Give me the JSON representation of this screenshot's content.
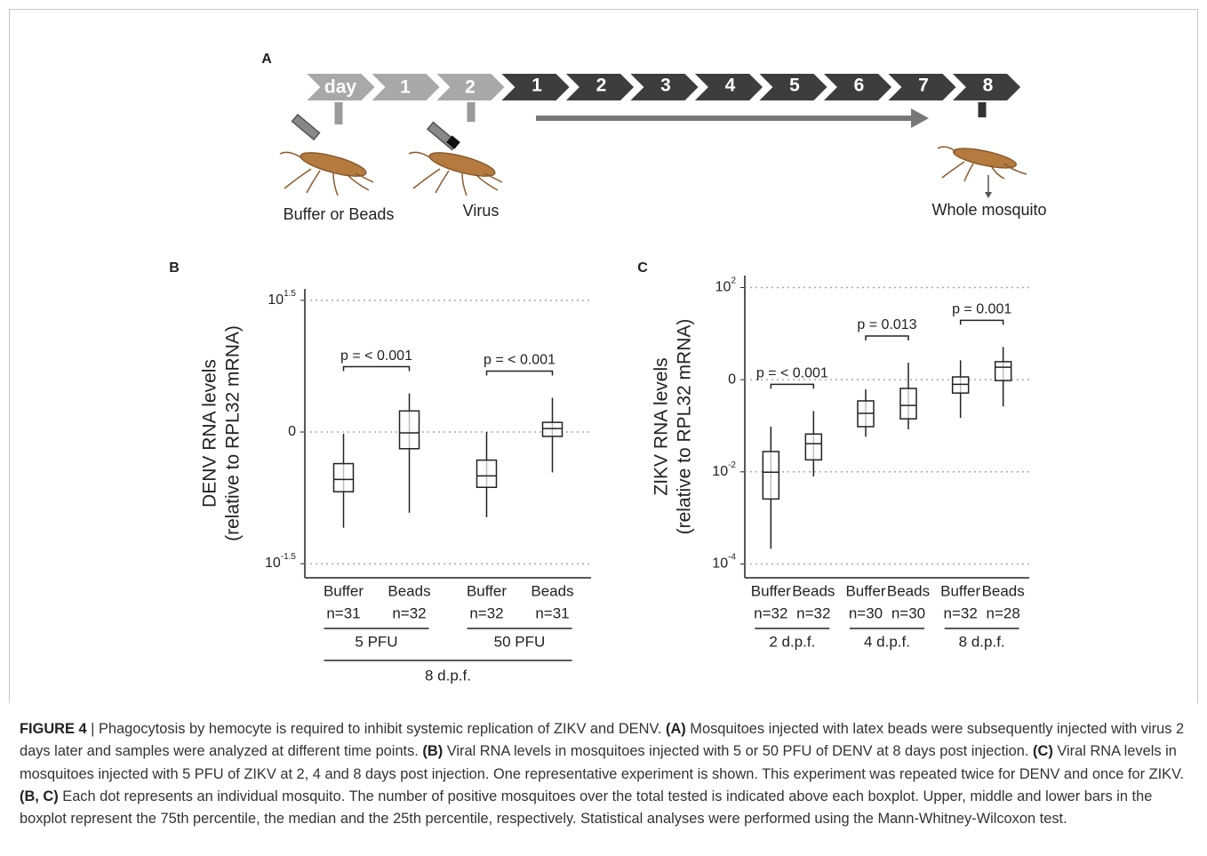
{
  "panel_a": {
    "label": "A",
    "timeline_pre": [
      "day",
      "1",
      "2"
    ],
    "timeline_post": [
      "1",
      "2",
      "3",
      "4",
      "5",
      "6",
      "7",
      "8"
    ],
    "annotations": [
      "Buffer or Beads",
      "Virus",
      "Whole mosquito"
    ]
  },
  "chart_data": [
    {
      "type": "box",
      "label": "B",
      "y_title": [
        "DENV RNA levels",
        "(relative to RPL32 mRNA)"
      ],
      "categories": [
        "Buffer",
        "Beads",
        "Buffer",
        "Beads"
      ],
      "n_labels": [
        "n=31",
        "n=32",
        "n=32",
        "n=31"
      ],
      "groups": [
        "5 PFU",
        "50 PFU"
      ],
      "supergroup": "8 d.p.f.",
      "stats": [
        {
          "low": -1.09,
          "q1": -0.68,
          "median": -0.54,
          "q3": -0.36,
          "high": -0.02
        },
        {
          "low": -0.92,
          "q1": -0.19,
          "median": -0.01,
          "q3": 0.24,
          "high": 0.44
        },
        {
          "low": -0.97,
          "q1": -0.63,
          "median": -0.5,
          "q3": -0.32,
          "high": 0
        },
        {
          "low": -0.46,
          "q1": -0.05,
          "median": 0.04,
          "q3": 0.11,
          "high": 0.39
        }
      ],
      "p_values": [
        "p = < 0.001",
        "p = < 0.001"
      ],
      "log_scale": true,
      "grid": true,
      "ylim": [
        -1.66,
        1.63
      ],
      "yticks": [
        {
          "value": 1.5,
          "label": "10",
          "sup": "1.5"
        },
        0,
        {
          "value": -1.5,
          "label": "10",
          "sup": "-1.5"
        }
      ]
    },
    {
      "type": "box",
      "label": "C",
      "y_title": [
        "ZIKV RNA levels",
        "(relative to RPL32 mRNA)"
      ],
      "categories": [
        "Buffer",
        "Beads",
        "Buffer",
        "Beads",
        "Buffer",
        "Beads"
      ],
      "n_labels": [
        "n=32",
        "n=32",
        "n=30",
        "n=30",
        "n=32",
        "n=28"
      ],
      "groups": [
        "2 d.p.f.",
        "4 d.p.f.",
        "8 d.p.f."
      ],
      "stats": [
        {
          "low": -3.67,
          "q1": -2.59,
          "median": -2.01,
          "q3": -1.56,
          "high": -1.02
        },
        {
          "low": -2.1,
          "q1": -1.74,
          "median": -1.39,
          "q3": -1.18,
          "high": -0.68
        },
        {
          "low": -1.24,
          "q1": -1.02,
          "median": -0.73,
          "q3": -0.46,
          "high": -0.21
        },
        {
          "low": -1.08,
          "q1": -0.85,
          "median": -0.56,
          "q3": -0.19,
          "high": 0.37
        },
        {
          "low": -0.83,
          "q1": -0.29,
          "median": -0.1,
          "q3": 0.06,
          "high": 0.42
        },
        {
          "low": -0.58,
          "q1": -0.02,
          "median": 0.27,
          "q3": 0.39,
          "high": 0.71
        }
      ],
      "p_values": [
        "p = < 0.001",
        "p = 0.013",
        "p = 0.001"
      ],
      "log_scale": true,
      "grid": true,
      "ylim": [
        -4.3,
        2.26
      ],
      "yticks": [
        {
          "value": 2,
          "label": "10",
          "sup": "2"
        },
        0,
        {
          "value": -2,
          "label": "10",
          "sup": "-2"
        },
        {
          "value": -4,
          "label": "10",
          "sup": "-4"
        }
      ]
    }
  ],
  "caption": [
    {
      "text": "FIGURE 4",
      "bold": true
    },
    {
      "text": " | Phagocytosis by hemocyte is required to inhibit systemic replication of ZIKV and DENV. ",
      "bold": false
    },
    {
      "text": "(A)",
      "bold": true
    },
    {
      "text": " Mosquitoes injected with latex beads were subsequently injected with virus 2 days later and samples were analyzed at different time points. ",
      "bold": false
    },
    {
      "text": "(B)",
      "bold": true
    },
    {
      "text": " Viral RNA levels in mosquitoes injected with 5 or 50 PFU of DENV at 8 days post injection. ",
      "bold": false
    },
    {
      "text": "(C)",
      "bold": true
    },
    {
      "text": " Viral RNA levels in mosquitoes injected with 5 PFU of ZIKV at 2, 4 and 8 days post injection. One representative experiment is shown. This experiment was repeated twice for DENV and once for ZIKV. ",
      "bold": false
    },
    {
      "text": "(B, C)",
      "bold": true
    },
    {
      "text": " Each dot represents an individual mosquito. The number of positive mosquitoes over the total tested is indicated above each boxplot. Upper, middle and lower bars in the boxplot represent the 75th percentile, the median and the 25th percentile, respectively. Statistical analyses were performed using the Mann-Whitney-Wilcoxon test.",
      "bold": false
    }
  ]
}
